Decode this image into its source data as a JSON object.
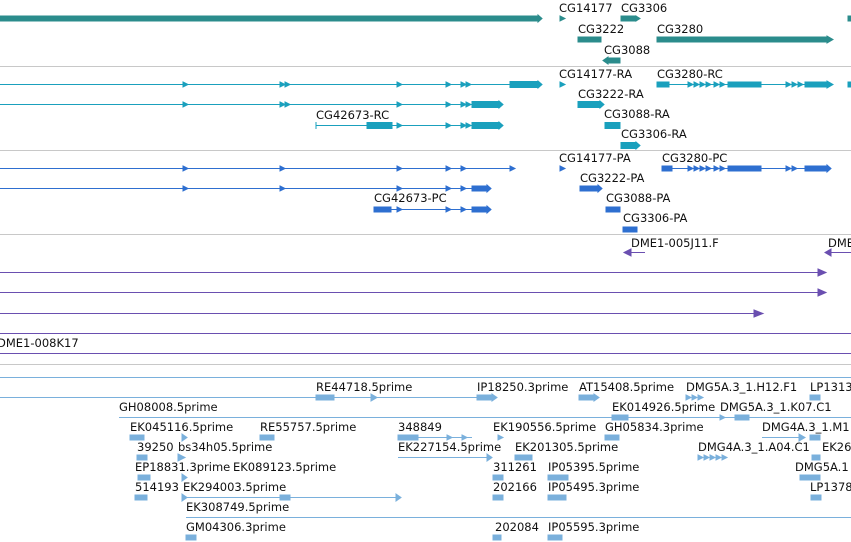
{
  "colors": {
    "gene": "#2b8c8c",
    "transcript_ra": "#1aa0bd",
    "transcript_pc": "#2e6fd0",
    "clone": "#6a4fb0",
    "est": "#7ab0dc",
    "separator": "#c8c8c8"
  },
  "gene_track": {
    "labels": {
      "cg14177": "CG14177",
      "cg3306": "CG3306",
      "cg3222": "CG3222",
      "cg3280": "CG3280",
      "cg3088": "CG3088"
    }
  },
  "transcript_ra_track": {
    "labels": {
      "cg14177_ra": "CG14177-RA",
      "cg3280_rc": "CG3280-RC",
      "cg3222_ra": "CG3222-RA",
      "cg42673_rc": "CG42673-RC",
      "cg3088_ra": "CG3088-RA",
      "cg3306_ra": "CG3306-RA"
    }
  },
  "transcript_pc_track": {
    "labels": {
      "cg14177_pa": "CG14177-PA",
      "cg3280_pc": "CG3280-PC",
      "cg3222_pa": "CG3222-PA",
      "cg42673_pc": "CG42673-PC",
      "cg3088_pa": "CG3088-PA",
      "cg3306_pa": "CG3306-PA"
    }
  },
  "clone_track": {
    "labels": {
      "dme1_005j11": "DME1-005J11.F",
      "dme_partial": "DME",
      "dme1_008k17": "DME1-008K17"
    }
  },
  "est_track": {
    "labels": {
      "re44718": "RE44718.5prime",
      "ip18250": "IP18250.3prime",
      "at15408": "AT15408.5prime",
      "dmg5a_h12": "DMG5A.3_1.H12.F1",
      "lp1313": "LP1313",
      "gh08008": "GH08008.5prime",
      "ek014926": "EK014926.5prime",
      "dmg5a_k07": "DMG5A.3_1.K07.C1",
      "ek045116": "EK045116.5prime",
      "re55757": "RE55757.5prime",
      "n348849": "348849",
      "ek190556": "EK190556.5prime",
      "gh05834": "GH05834.3prime",
      "dmg4a_m1": "DMG4A.3_1.M1",
      "n39250": "39250",
      "bs34h05": "bs34h05.5prime",
      "ek227154": "EK227154.5prime",
      "ek201305": "EK201305.5prime",
      "dmg4a_a04": "DMG4A.3_1.A04.C1",
      "ek26": "EK26",
      "ep18831": "EP18831.3prime",
      "ek089123": "EK089123.5prime",
      "n311261": "311261",
      "ip05395": "IP05395.5prime",
      "dmg5a_1": "DMG5A.1",
      "n514193": "514193",
      "ek294003": "EK294003.5prime",
      "n202166": "202166",
      "ip05495": "IP05495.3prime",
      "lp1378": "LP1378",
      "ek308749": "EK308749.5prime",
      "gm04306": "GM04306.3prime",
      "n202084": "202084",
      "ip05595": "IP05595.3prime"
    }
  }
}
